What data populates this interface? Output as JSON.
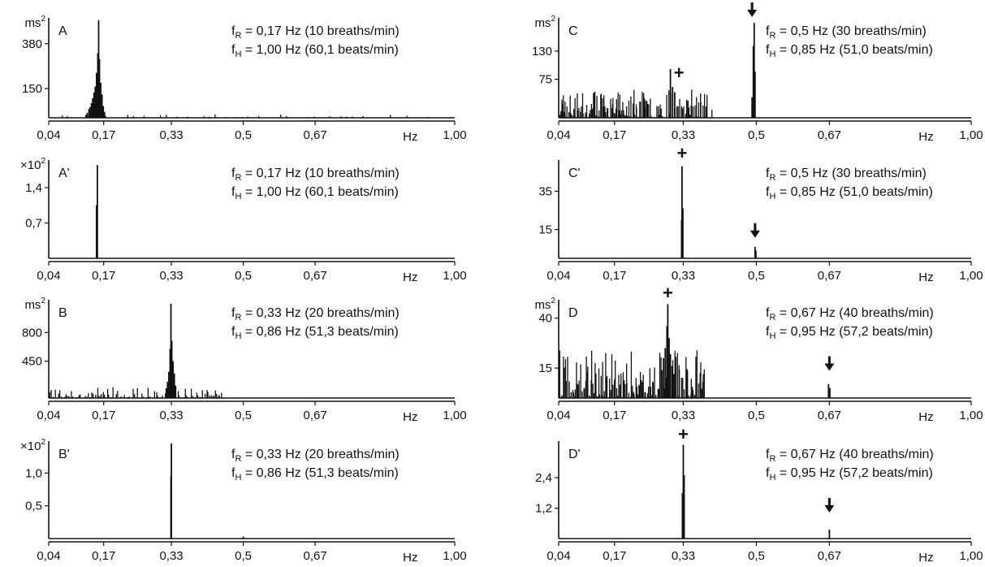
{
  "chart_data": [
    {
      "type": "bar",
      "panel_label": "A",
      "unit_label": "ms²",
      "unit_base": "ms",
      "unit_sup": "2",
      "x_ticks": [
        "0,04",
        "0,17",
        "0,33",
        "0,5",
        "0,67",
        "1,00"
      ],
      "x_tick_values": [
        0.04,
        0.17,
        0.33,
        0.5,
        0.67,
        1.0
      ],
      "x_unit": "Hz",
      "xlim": [
        0.04,
        1.0
      ],
      "ylim": [
        0,
        500
      ],
      "y_ticks": [
        "380",
        "150"
      ],
      "y_tick_values": [
        380,
        150
      ],
      "annotations": [
        {
          "prefix": "f",
          "sub": "R",
          "text": " = 0,17 Hz (10 breaths/min)"
        },
        {
          "prefix": "f",
          "sub": "H",
          "text": " = 1,00 Hz (60,1 beats/min)"
        }
      ],
      "markers": [],
      "peaks": [
        {
          "x": 0.128,
          "y": 15
        },
        {
          "x": 0.131,
          "y": 25
        },
        {
          "x": 0.135,
          "y": 45
        },
        {
          "x": 0.138,
          "y": 55
        },
        {
          "x": 0.141,
          "y": 75
        },
        {
          "x": 0.144,
          "y": 100
        },
        {
          "x": 0.147,
          "y": 130
        },
        {
          "x": 0.15,
          "y": 160
        },
        {
          "x": 0.153,
          "y": 230
        },
        {
          "x": 0.156,
          "y": 330
        },
        {
          "x": 0.158,
          "y": 500
        },
        {
          "x": 0.16,
          "y": 300
        },
        {
          "x": 0.163,
          "y": 180
        },
        {
          "x": 0.166,
          "y": 120
        },
        {
          "x": 0.169,
          "y": 60
        },
        {
          "x": 0.172,
          "y": 30
        }
      ],
      "noise": {
        "from": 0.045,
        "to": 0.95,
        "amp": 18,
        "n": 70,
        "seed": 11
      }
    },
    {
      "type": "bar",
      "panel_label": "A'",
      "unit_label": "×10²",
      "unit_base": "×10",
      "unit_sup": "2",
      "x_ticks": [
        "0,04",
        "0,17",
        "0,33",
        "0,5",
        "0,67",
        "1,00"
      ],
      "x_tick_values": [
        0.04,
        0.17,
        0.33,
        0.5,
        0.67,
        1.0
      ],
      "x_unit": "Hz",
      "xlim": [
        0.04,
        1.0
      ],
      "ylim": [
        0,
        1.9
      ],
      "y_ticks": [
        "1,4",
        "0,7"
      ],
      "y_tick_values": [
        1.4,
        0.7
      ],
      "annotations": [
        {
          "prefix": "f",
          "sub": "R",
          "text": " = 0,17 Hz (10 breaths/min)"
        },
        {
          "prefix": "f",
          "sub": "H",
          "text": " = 1,00 Hz (60,1 beats/min)"
        }
      ],
      "markers": [],
      "peaks": [
        {
          "x": 0.155,
          "y": 1.85
        },
        {
          "x": 0.153,
          "y": 1.05
        }
      ],
      "noise": null
    },
    {
      "type": "bar",
      "panel_label": "B",
      "unit_label": "ms²",
      "unit_base": "ms",
      "unit_sup": "2",
      "x_ticks": [
        "0,04",
        "0,17",
        "0,33",
        "0,5",
        "0,67",
        "1,00"
      ],
      "x_tick_values": [
        0.04,
        0.17,
        0.33,
        0.5,
        0.67,
        1.0
      ],
      "x_unit": "Hz",
      "xlim": [
        0.04,
        1.0
      ],
      "ylim": [
        0,
        1170
      ],
      "y_ticks": [
        "800",
        "450"
      ],
      "y_tick_values": [
        800,
        450
      ],
      "annotations": [
        {
          "prefix": "f",
          "sub": "R",
          "text": " = 0,33 Hz (20 breaths/min)"
        },
        {
          "prefix": "f",
          "sub": "H",
          "text": " = 0,86 Hz (51,3 beats/min)"
        }
      ],
      "markers": [],
      "peaks": [
        {
          "x": 0.318,
          "y": 120
        },
        {
          "x": 0.321,
          "y": 200
        },
        {
          "x": 0.324,
          "y": 320
        },
        {
          "x": 0.327,
          "y": 600
        },
        {
          "x": 0.329,
          "y": 1150
        },
        {
          "x": 0.331,
          "y": 700
        },
        {
          "x": 0.334,
          "y": 450
        },
        {
          "x": 0.337,
          "y": 300
        },
        {
          "x": 0.34,
          "y": 150
        }
      ],
      "noise": {
        "from": 0.042,
        "to": 0.45,
        "amp": 140,
        "n": 120,
        "seed": 5
      }
    },
    {
      "type": "bar",
      "panel_label": "B'",
      "unit_label": "×10²",
      "unit_base": "×10",
      "unit_sup": "2",
      "x_ticks": [
        "0,04",
        "0,17",
        "0,33",
        "0,5",
        "0,67",
        "1,00"
      ],
      "x_tick_values": [
        0.04,
        0.17,
        0.33,
        0.5,
        0.67,
        1.0
      ],
      "x_unit": "Hz",
      "xlim": [
        0.04,
        1.0
      ],
      "ylim": [
        0,
        1.45
      ],
      "y_ticks": [
        "1,0",
        "0,5"
      ],
      "y_tick_values": [
        1.0,
        0.5
      ],
      "annotations": [
        {
          "prefix": "f",
          "sub": "R",
          "text": " = 0,33 Hz (20 breaths/min)"
        },
        {
          "prefix": "f",
          "sub": "H",
          "text": " = 0,86 Hz (51,3 beats/min)"
        }
      ],
      "markers": [],
      "peaks": [
        {
          "x": 0.33,
          "y": 1.45
        },
        {
          "x": 0.329,
          "y": 0.95
        },
        {
          "x": 0.5,
          "y": 0.03
        }
      ],
      "noise": null
    },
    {
      "type": "bar",
      "panel_label": "C",
      "unit_label": "ms²",
      "unit_base": "ms",
      "unit_sup": "2",
      "x_ticks": [
        "0,04",
        "0,17",
        "0,33",
        "0,5",
        "0,67",
        "1,00"
      ],
      "x_tick_values": [
        0.04,
        0.17,
        0.33,
        0.5,
        0.67,
        1.0
      ],
      "x_unit": "Hz",
      "xlim": [
        0.04,
        1.0
      ],
      "ylim": [
        0,
        190
      ],
      "y_ticks": [
        "130",
        "75"
      ],
      "y_tick_values": [
        130,
        75
      ],
      "annotations": [
        {
          "prefix": "f",
          "sub": "R",
          "text": " = 0,5 Hz (30 breaths/min)"
        },
        {
          "prefix": "f",
          "sub": "H",
          "text": " = 0,85 Hz (51,0 beats/min)"
        }
      ],
      "markers": [
        {
          "symbol": "+",
          "x": 0.32,
          "y": 70
        },
        {
          "symbol": "↓",
          "x": 0.49,
          "y": 190
        }
      ],
      "peaks": [
        {
          "x": 0.3,
          "y": 95
        },
        {
          "x": 0.305,
          "y": 60
        },
        {
          "x": 0.31,
          "y": 50
        },
        {
          "x": 0.495,
          "y": 185
        },
        {
          "x": 0.493,
          "y": 140
        },
        {
          "x": 0.497,
          "y": 90
        },
        {
          "x": 0.49,
          "y": 40
        }
      ],
      "noise": {
        "from": 0.042,
        "to": 0.4,
        "amp": 55,
        "n": 170,
        "seed": 23
      }
    },
    {
      "type": "bar",
      "panel_label": "C'",
      "unit_label": "",
      "unit_base": "",
      "unit_sup": "",
      "x_ticks": [
        "0,04",
        "0,17",
        "0,33",
        "0,5",
        "0,67",
        "1,00"
      ],
      "x_tick_values": [
        0.04,
        0.17,
        0.33,
        0.5,
        0.67,
        1.0
      ],
      "x_unit": "Hz",
      "xlim": [
        0.04,
        1.0
      ],
      "ylim": [
        0,
        50
      ],
      "y_ticks": [
        "35",
        "15"
      ],
      "y_tick_values": [
        35,
        15
      ],
      "annotations": [
        {
          "prefix": "f",
          "sub": "R",
          "text": " = 0,5 Hz (30 breaths/min)"
        },
        {
          "prefix": "f",
          "sub": "H",
          "text": " = 0,85 Hz (51,0 beats/min)"
        }
      ],
      "markers": [
        {
          "symbol": "+",
          "x": 0.327,
          "y": 50
        },
        {
          "symbol": "↓",
          "x": 0.497,
          "y": 9
        }
      ],
      "peaks": [
        {
          "x": 0.327,
          "y": 48
        },
        {
          "x": 0.329,
          "y": 26
        },
        {
          "x": 0.326,
          "y": 20
        },
        {
          "x": 0.497,
          "y": 6
        },
        {
          "x": 0.499,
          "y": 4
        }
      ],
      "noise": null
    },
    {
      "type": "bar",
      "panel_label": "D",
      "unit_label": "ms²",
      "unit_base": "ms",
      "unit_sup": "2",
      "x_ticks": [
        "0,04",
        "0,17",
        "0,33",
        "0,5",
        "0,67",
        "1,00"
      ],
      "x_tick_values": [
        0.04,
        0.17,
        0.33,
        0.5,
        0.67,
        1.0
      ],
      "x_unit": "Hz",
      "xlim": [
        0.04,
        1.0
      ],
      "ylim": [
        0,
        48
      ],
      "y_ticks": [
        "40",
        "15"
      ],
      "y_tick_values": [
        40,
        15
      ],
      "annotations": [
        {
          "prefix": "f",
          "sub": "R",
          "text": " = 0,67 Hz (40 breaths/min)"
        },
        {
          "prefix": "f",
          "sub": "H",
          "text": " = 0,95 Hz (57,2 beats/min)"
        }
      ],
      "markers": [
        {
          "symbol": "+",
          "x": 0.294,
          "y": 48
        },
        {
          "symbol": "↓",
          "x": 0.67,
          "y": 12
        }
      ],
      "peaks": [
        {
          "x": 0.28,
          "y": 14
        },
        {
          "x": 0.284,
          "y": 20
        },
        {
          "x": 0.288,
          "y": 25
        },
        {
          "x": 0.292,
          "y": 36
        },
        {
          "x": 0.294,
          "y": 47
        },
        {
          "x": 0.297,
          "y": 30
        },
        {
          "x": 0.3,
          "y": 22
        },
        {
          "x": 0.304,
          "y": 16
        },
        {
          "x": 0.308,
          "y": 12
        },
        {
          "x": 0.668,
          "y": 7
        },
        {
          "x": 0.671,
          "y": 5
        }
      ],
      "noise": {
        "from": 0.042,
        "to": 0.38,
        "amp": 24,
        "n": 160,
        "seed": 41
      }
    },
    {
      "type": "bar",
      "panel_label": "D'",
      "unit_label": "",
      "unit_base": "",
      "unit_sup": "",
      "x_ticks": [
        "0,04",
        "0,17",
        "0,33",
        "0,5",
        "0,67",
        "1,00"
      ],
      "x_tick_values": [
        0.04,
        0.17,
        0.33,
        0.5,
        0.67,
        1.0
      ],
      "x_unit": "Hz",
      "xlim": [
        0.04,
        1.0
      ],
      "ylim": [
        0,
        3.75
      ],
      "y_ticks": [
        "2,4",
        "1,2"
      ],
      "y_tick_values": [
        2.4,
        1.2
      ],
      "annotations": [
        {
          "prefix": "f",
          "sub": "R",
          "text": " = 0,67 Hz (40 breaths/min)"
        },
        {
          "prefix": "f",
          "sub": "H",
          "text": " = 0,95 Hz (57,2 beats/min)"
        }
      ],
      "markers": [
        {
          "symbol": "+",
          "x": 0.33,
          "y": 3.75
        },
        {
          "symbol": "↓",
          "x": 0.67,
          "y": 0.9
        }
      ],
      "peaks": [
        {
          "x": 0.33,
          "y": 3.7
        },
        {
          "x": 0.332,
          "y": 2.5
        },
        {
          "x": 0.328,
          "y": 1.8
        },
        {
          "x": 0.67,
          "y": 0.35
        }
      ],
      "noise": null
    }
  ]
}
